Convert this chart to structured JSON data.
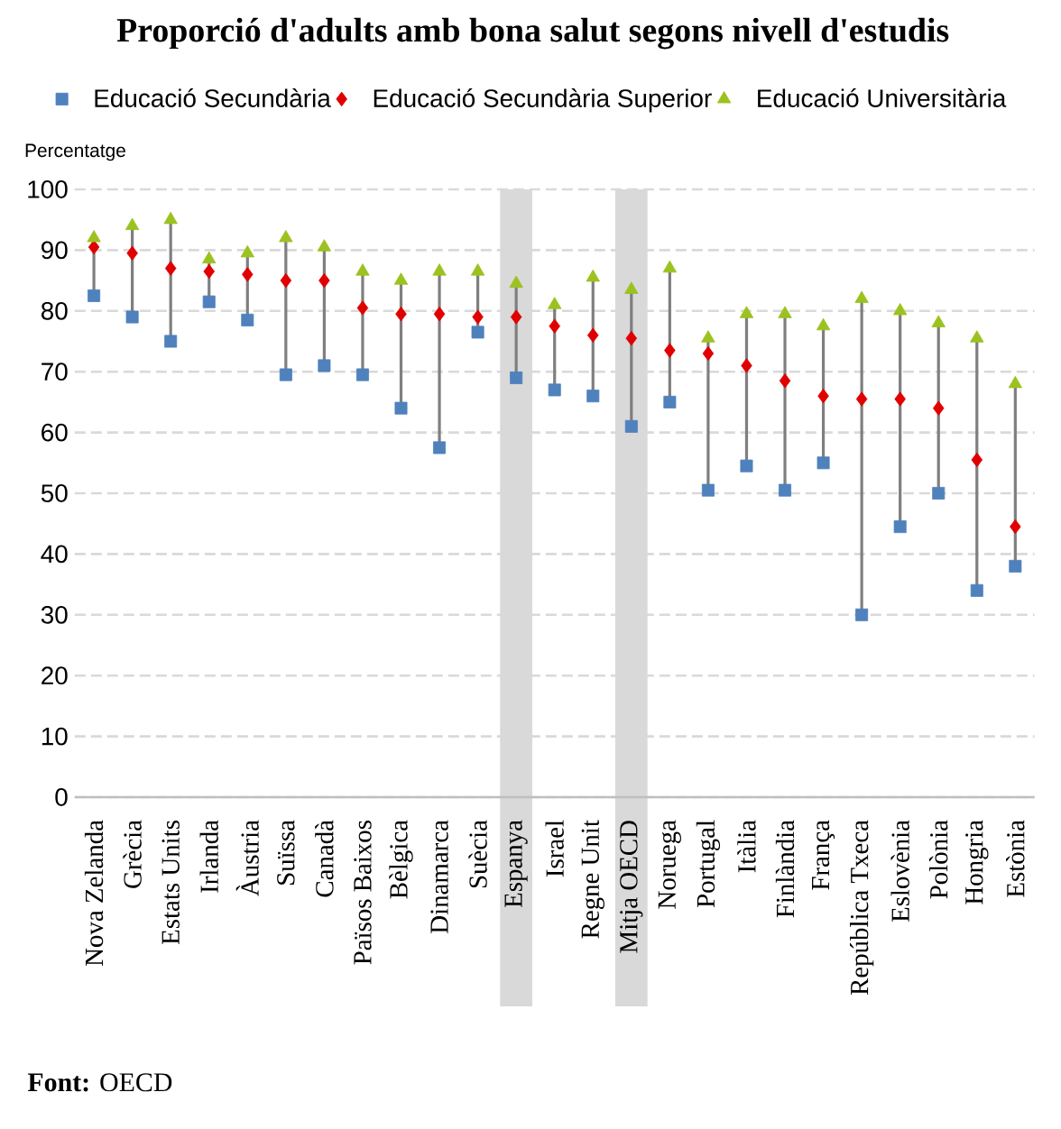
{
  "chart_data": {
    "type": "scatter",
    "title": "Proporció d'adults amb bona salut segons nivell d'estudis",
    "ylabel": "Percentatge",
    "categories": [
      "Nova Zelanda",
      "Grècia",
      "Estats Units",
      "Irlanda",
      "Àustria",
      "Suïssa",
      "Canadà",
      "Països Baixos",
      "Bèlgica",
      "Dinamarca",
      "Suècia",
      "Espanya",
      "Israel",
      "Regne Unit",
      "Mitja OECD",
      "Noruega",
      "Portugal",
      "Itàlia",
      "Finlàndia",
      "França",
      "República Txeca",
      "Eslovènia",
      "Polònia",
      "Hongria",
      "Estònia"
    ],
    "series": [
      {
        "name": "Educació Secundària",
        "color": "#4f81bd",
        "marker": "square",
        "values": [
          82.5,
          79,
          75,
          81.5,
          78.5,
          69.5,
          71,
          69.5,
          64,
          57.5,
          76.5,
          69,
          67,
          66,
          61,
          65,
          50.5,
          54.5,
          50.5,
          55,
          30,
          44.5,
          50,
          34,
          38
        ]
      },
      {
        "name": "Educació Secundària Superior",
        "color": "#e00000",
        "marker": "diamond",
        "values": [
          90.5,
          89.5,
          87,
          86.5,
          86,
          85,
          85,
          80.5,
          79.5,
          79.5,
          79,
          79,
          77.5,
          76,
          75.5,
          73.5,
          73,
          71,
          68.5,
          66,
          65.5,
          65.5,
          64,
          55.5,
          44.5
        ]
      },
      {
        "name": "Educació Universitària",
        "color": "#9bc21f",
        "marker": "triangle",
        "values": [
          92,
          94,
          95,
          88.5,
          89.5,
          92,
          90.5,
          86.5,
          85,
          86.5,
          86.5,
          84.5,
          81,
          85.5,
          83.5,
          87,
          75.5,
          79.5,
          79.5,
          77.5,
          82,
          80,
          78,
          75.5,
          68
        ]
      }
    ],
    "ylim": [
      0,
      100
    ],
    "yticks": [
      0,
      10,
      20,
      30,
      40,
      50,
      60,
      70,
      80,
      90,
      100
    ],
    "grid": "y",
    "legend": "top",
    "bands": [
      {
        "axis": "x",
        "from": "Espanya",
        "to": "Espanya",
        "color": "#d9d9d9"
      },
      {
        "axis": "x",
        "from": "Mitja OECD",
        "to": "Mitja OECD",
        "color": "#d9d9d9"
      }
    ],
    "annotations": [
      "**Font:** OECD"
    ]
  }
}
